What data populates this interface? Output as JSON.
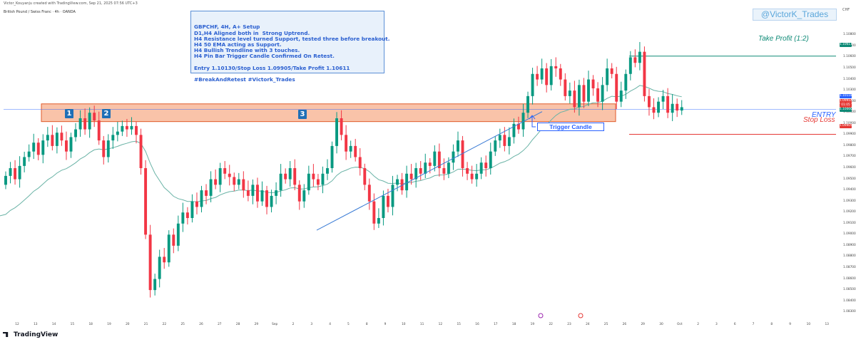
{
  "header": {
    "created_by": "Victor_Kouyanju created with TradingView.com, Sep 21, 2025 07:56 UTC+3",
    "symbol_line": "British Pound / Swiss Franc · 4h · OANDA",
    "currency": "CHF"
  },
  "brand": {
    "name": "TradingView"
  },
  "notes": {
    "lines": [
      "GBPCHF, 4H, A+ Setup",
      "D1,H4 Aligned both in  Strong Uptrend.",
      "H4 Resistance level turned Support, tested three before breakout.",
      "H4 50 EMA acting as Support.",
      "H4 Bullish Trendline with 3 touches.",
      "H4 Pin Bar Trigger Candle Confirmed On Retest.",
      "",
      "Entry 1.10130/Stop Loss 1.09905/Take Profit 1.10611",
      "",
      "#BreakAndRetest #Victork_Trades"
    ]
  },
  "handle": "@VictorK_Trades",
  "annotations": {
    "take_profit": "Take Profit (1:2)",
    "entry": "ENTRY",
    "stop_loss": "Stop Loss",
    "trigger": "Trigger Candle",
    "touches": [
      "1",
      "2",
      "3"
    ]
  },
  "price_tags": {
    "take_profit": "1.10611",
    "current": "1.10118",
    "bid": "1.09914",
    "countdown": "01:05",
    "support": "1.10060",
    "stop_loss": "1.09905"
  },
  "colors": {
    "up": "#089981",
    "down": "#f23645",
    "zone_fill": "#f8b89a",
    "zone_border": "#e05a2a",
    "take_profit": "#0e8a76",
    "entry": "#2962ff",
    "stop_loss": "#e53935",
    "ema": "#6ab3a6",
    "trendline": "#3a7bd5"
  },
  "chart_data": {
    "type": "candlestick",
    "title": "British Pound / Swiss Franc · 4h · OANDA",
    "ylim": [
      1.0825,
      1.1095
    ],
    "y_ticks": [
      1.108,
      1.107,
      1.106,
      1.105,
      1.104,
      1.103,
      1.102,
      1.101,
      1.1,
      1.099,
      1.098,
      1.097,
      1.096,
      1.095,
      1.094,
      1.093,
      1.092,
      1.091,
      1.09,
      1.089,
      1.088,
      1.087,
      1.086,
      1.085,
      1.084,
      1.083
    ],
    "y_tick_labels": [
      "1.10800",
      "1.10700",
      "1.10600",
      "1.10500",
      "1.10400",
      "1.10300",
      "1.10200",
      "1.10100",
      "1.10000",
      "1.09900",
      "1.09800",
      "1.09700",
      "1.09600",
      "1.09500",
      "1.09400",
      "1.09300",
      "1.09200",
      "1.09100",
      "1.09000",
      "1.08900",
      "1.08800",
      "1.08700",
      "1.08600",
      "1.08500",
      "1.08400",
      "1.08300"
    ],
    "x_labels": [
      "12",
      "13",
      "14",
      "15",
      "18",
      "19",
      "20",
      "21",
      "22",
      "25",
      "26",
      "27",
      "28",
      "29",
      "Sep",
      "2",
      "3",
      "4",
      "5",
      "8",
      "9",
      "10",
      "11",
      "12",
      "15",
      "16",
      "17",
      "18",
      "19",
      "22",
      "23",
      "24",
      "25",
      "26",
      "29",
      "30",
      "Oct",
      "2",
      "3",
      "6",
      "7",
      "8",
      "9",
      "10",
      "13"
    ],
    "x_label_day_index": [
      0,
      1,
      2,
      3,
      4,
      5,
      6,
      7,
      8,
      9,
      10,
      11,
      12,
      13,
      14,
      15,
      16,
      17,
      18,
      19,
      20,
      21,
      22,
      23,
      24,
      25,
      26,
      27,
      28,
      29,
      30,
      31,
      32,
      33,
      34,
      35,
      36,
      37,
      38,
      39,
      40,
      41,
      42,
      43,
      44
    ],
    "candles_per_day": 6,
    "candle_closes": [
      1.0953,
      1.096,
      1.095,
      1.0962,
      1.097,
      1.0975,
      1.0983,
      1.0972,
      1.0985,
      1.099,
      1.098,
      1.0992,
      1.0985,
      1.0975,
      1.0988,
      1.0995,
      1.1005,
      1.0995,
      1.101,
      1.1003,
      1.0985,
      1.097,
      1.0985,
      1.099,
      1.0993,
      1.0998,
      1.0995,
      1.0998,
      1.099,
      1.096,
      1.09,
      1.085,
      1.086,
      1.088,
      1.0875,
      1.09,
      1.089,
      1.091,
      1.092,
      1.0915,
      1.093,
      1.0925,
      1.094,
      1.0935,
      1.095,
      1.0945,
      1.096,
      1.0955,
      1.0952,
      1.0945,
      1.095,
      1.094,
      1.0935,
      1.0945,
      1.093,
      1.094,
      1.0925,
      1.0935,
      1.094,
      1.0955,
      1.095,
      1.096,
      1.0945,
      1.093,
      1.094,
      1.0955,
      1.095,
      1.0945,
      1.0955,
      1.096,
      1.098,
      1.1005,
      1.099,
      1.0975,
      1.098,
      1.097,
      1.096,
      1.0945,
      1.093,
      1.091,
      1.0915,
      1.0935,
      1.0925,
      1.0945,
      1.095,
      1.094,
      1.0955,
      1.095,
      1.096,
      1.0955,
      1.0965,
      1.0962,
      1.0975,
      1.096,
      1.0955,
      1.0965,
      1.0975,
      1.0985,
      1.096,
      1.0955,
      1.095,
      1.0955,
      1.0965,
      1.096,
      1.0975,
      1.0985,
      1.099,
      1.098,
      1.0988,
      1.1,
      1.0995,
      1.101,
      1.1025,
      1.1045,
      1.104,
      1.105,
      1.1035,
      1.1052,
      1.105,
      1.104,
      1.1025,
      1.103,
      1.1015,
      1.1035,
      1.102,
      1.104,
      1.1032,
      1.102,
      1.1035,
      1.105,
      1.1045,
      1.102,
      1.103,
      1.1045,
      1.106,
      1.1055,
      1.1065,
      1.1025,
      1.1015,
      1.101,
      1.102,
      1.1025,
      1.101,
      1.1018,
      1.1012,
      1.1015
    ],
    "support_resistance_zone": [
      1.1002,
      1.1018
    ],
    "take_profit": 1.10611,
    "entry": 1.1013,
    "stop_loss": 1.09905,
    "ema_period": 50
  }
}
